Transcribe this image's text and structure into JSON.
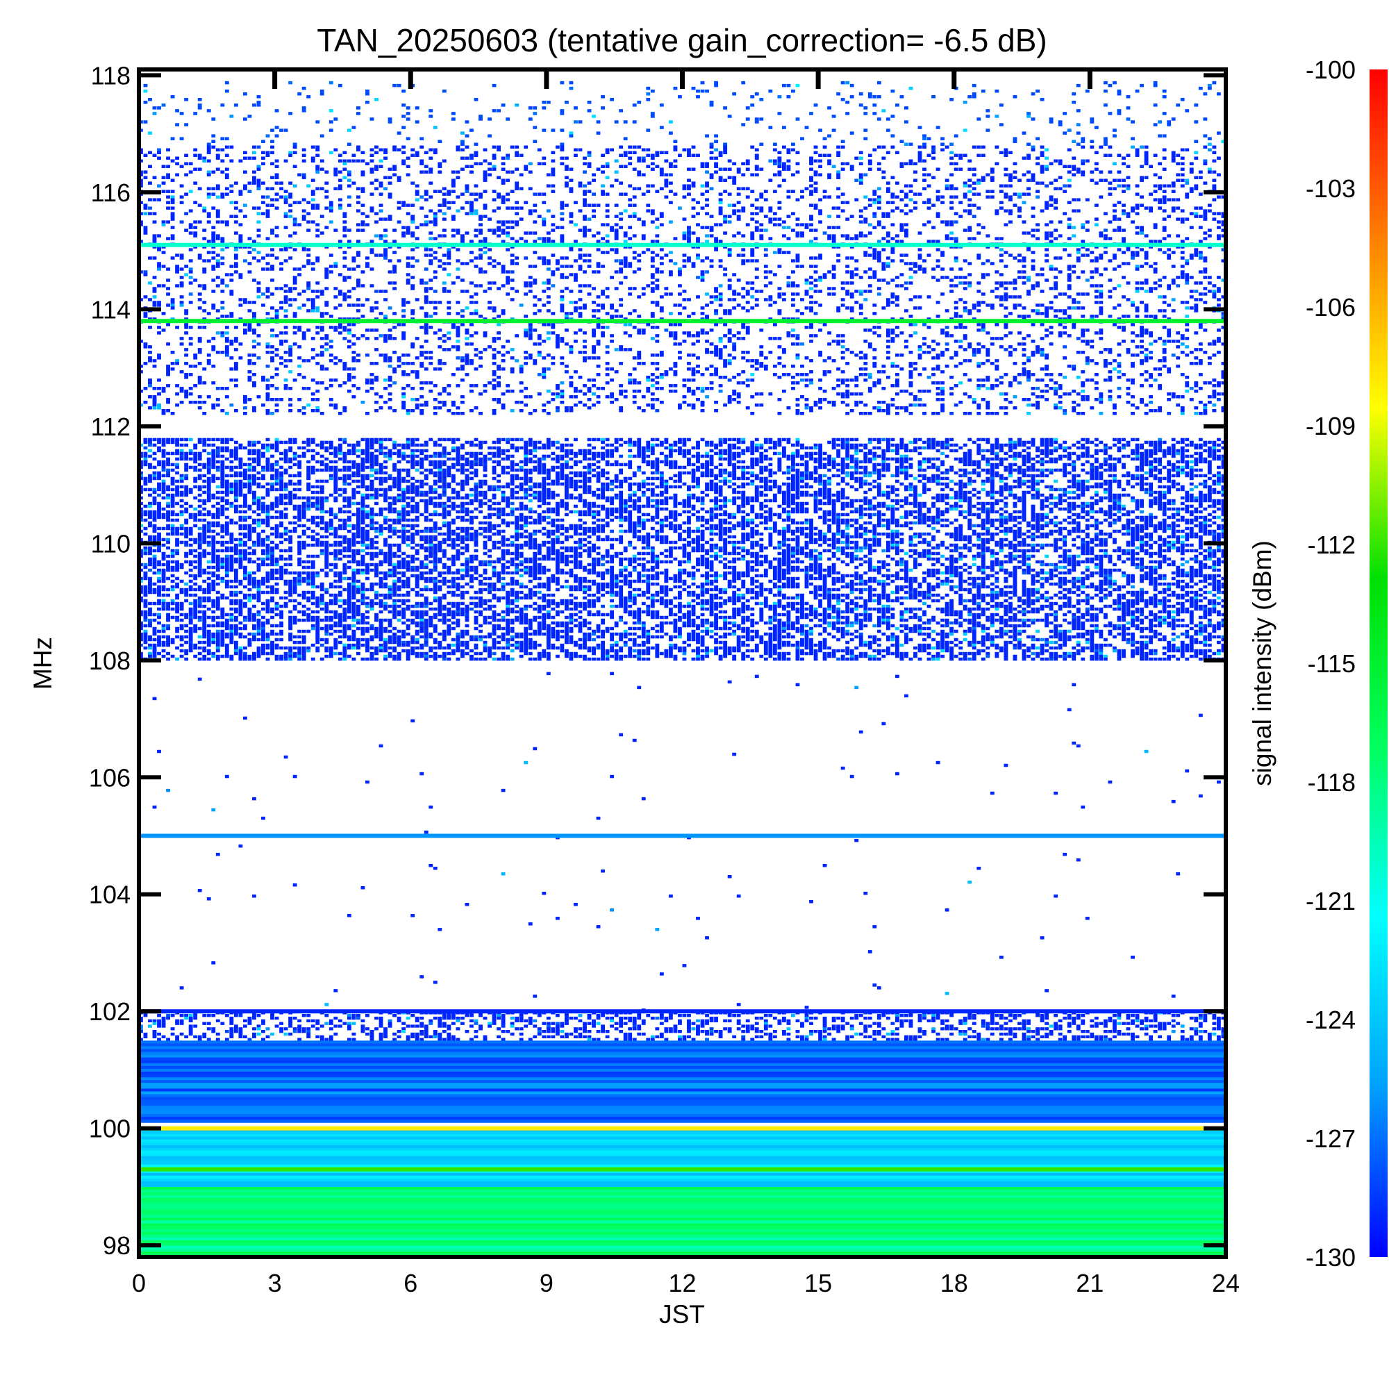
{
  "chart_data": {
    "type": "heatmap",
    "title": "TAN_20250603 (tentative gain_correction= -6.5 dB)",
    "xlabel": "JST",
    "ylabel": "MHz",
    "xlim": [
      0,
      24
    ],
    "ylim": [
      97.8,
      118.1
    ],
    "xticks": [
      "0",
      "3",
      "6",
      "9",
      "12",
      "15",
      "18",
      "21",
      "24"
    ],
    "yticks": [
      "98",
      "100",
      "102",
      "104",
      "106",
      "108",
      "110",
      "112",
      "114",
      "116",
      "118"
    ],
    "colorbar": {
      "label": "signal intensity (dBm)",
      "range": [
        -130,
        -100
      ],
      "ticks": [
        "-100",
        "-103",
        "-106",
        "-109",
        "-112",
        "-115",
        "-118",
        "-121",
        "-124",
        "-127",
        "-130"
      ],
      "colors": [
        "#0000ff",
        "#00a0ff",
        "#00ffff",
        "#00ff60",
        "#00e000",
        "#ffff00",
        "#ff8000",
        "#ff0000"
      ]
    },
    "bands": [
      {
        "freq_min": 116.8,
        "freq_max": 117.9,
        "level_dbm": -128,
        "density": 0.07
      },
      {
        "freq_min": 112.2,
        "freq_max": 116.8,
        "level_dbm": -129,
        "density": 0.22
      },
      {
        "freq_min": 108.0,
        "freq_max": 111.8,
        "level_dbm": -129,
        "density": 0.55
      },
      {
        "freq_min": 102.0,
        "freq_max": 107.8,
        "level_dbm": -129,
        "density": 0.004
      },
      {
        "freq_min": 101.5,
        "freq_max": 102.0,
        "level_dbm": -129,
        "density": 0.4
      },
      {
        "freq_min": 100.1,
        "freq_max": 101.5,
        "level_dbm": -127,
        "density": 1.0
      },
      {
        "freq_min": 99.0,
        "freq_max": 100.0,
        "level_dbm": -123,
        "density": 1.0
      },
      {
        "freq_min": 97.8,
        "freq_max": 99.0,
        "level_dbm": -118,
        "density": 1.0
      }
    ],
    "lines": [
      {
        "freq": 115.1,
        "level_dbm": -120
      },
      {
        "freq": 113.8,
        "level_dbm": -115
      },
      {
        "freq": 105.0,
        "level_dbm": -126
      },
      {
        "freq": 102.0,
        "level_dbm": -129
      },
      {
        "freq": 100.0,
        "level_dbm": -108
      },
      {
        "freq": 99.3,
        "level_dbm": -112
      }
    ]
  }
}
